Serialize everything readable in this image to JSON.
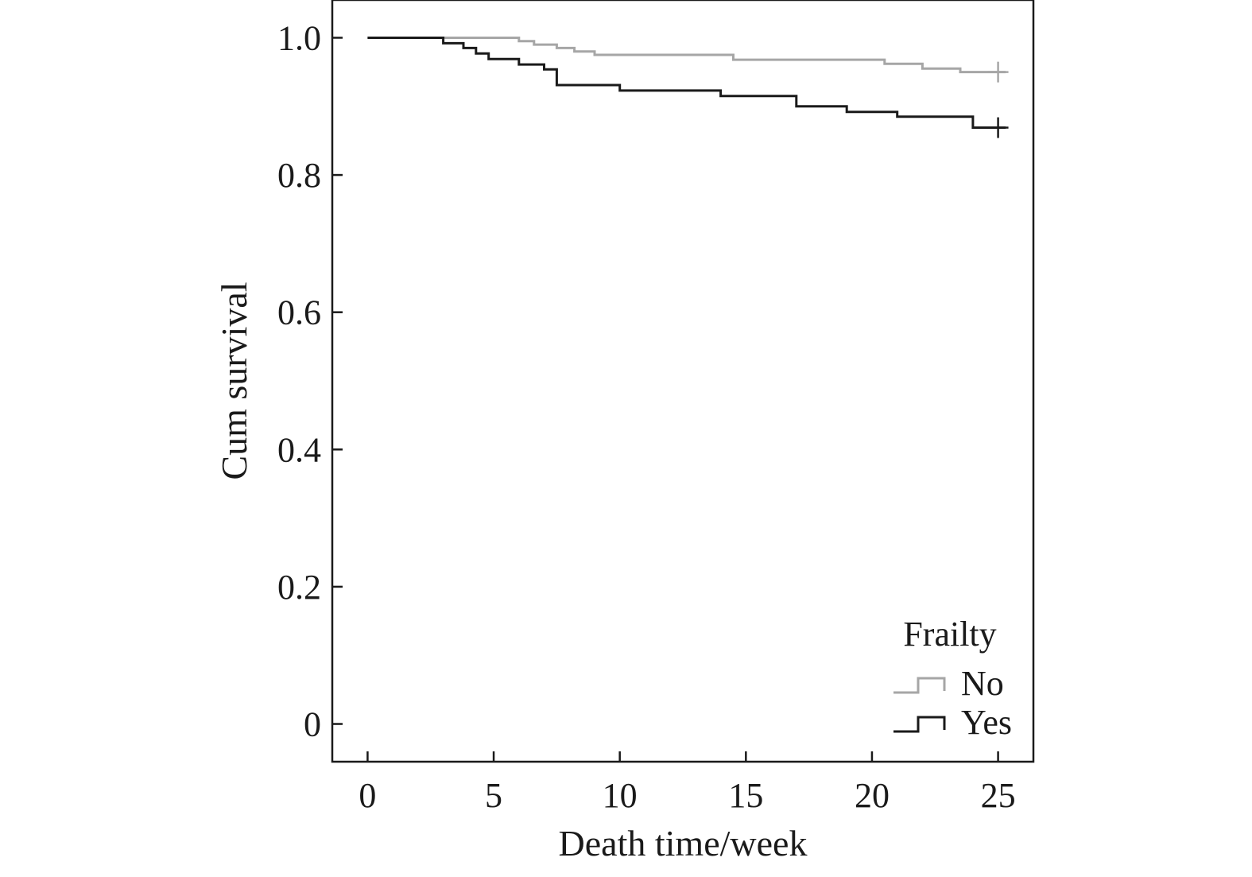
{
  "chart_data": {
    "type": "line",
    "subtype": "kaplan-meier step",
    "title": "",
    "xlabel": "Death time/week",
    "ylabel": "Cum survival",
    "xlim": [
      -1.4,
      26.4
    ],
    "ylim": [
      -0.055,
      1.055
    ],
    "x_ticks": [
      0,
      5,
      10,
      15,
      20,
      25
    ],
    "y_ticks": [
      0,
      0.2,
      0.4,
      0.6,
      0.8,
      1.0
    ],
    "x_tick_labels": [
      "0",
      "5",
      "10",
      "15",
      "20",
      "25"
    ],
    "y_tick_labels": [
      "0",
      "0.2",
      "0.4",
      "0.6",
      "0.8",
      "1.0"
    ],
    "grid": false,
    "legend": {
      "title": "Frailty",
      "position": "bottom-right"
    },
    "series": [
      {
        "name": "No",
        "color": "#a6a6a6",
        "x": [
          0,
          6.0,
          6.6,
          7.5,
          8.2,
          9.0,
          14.5,
          20.5,
          22.0,
          23.5,
          25.3
        ],
        "y": [
          1.0,
          0.995,
          0.99,
          0.985,
          0.98,
          0.975,
          0.968,
          0.962,
          0.955,
          0.95,
          0.95
        ],
        "censor": [
          [
            25,
            0.95
          ]
        ]
      },
      {
        "name": "Yes",
        "color": "#1a1a1a",
        "x": [
          0,
          3.0,
          3.8,
          4.3,
          4.8,
          6.0,
          7.0,
          7.5,
          10.0,
          14.0,
          17.0,
          19.0,
          21.0,
          24.0,
          25.3
        ],
        "y": [
          1.0,
          0.992,
          0.985,
          0.977,
          0.969,
          0.961,
          0.954,
          0.931,
          0.923,
          0.915,
          0.9,
          0.892,
          0.885,
          0.869,
          0.869
        ],
        "censor": [
          [
            25,
            0.869
          ]
        ]
      }
    ]
  }
}
